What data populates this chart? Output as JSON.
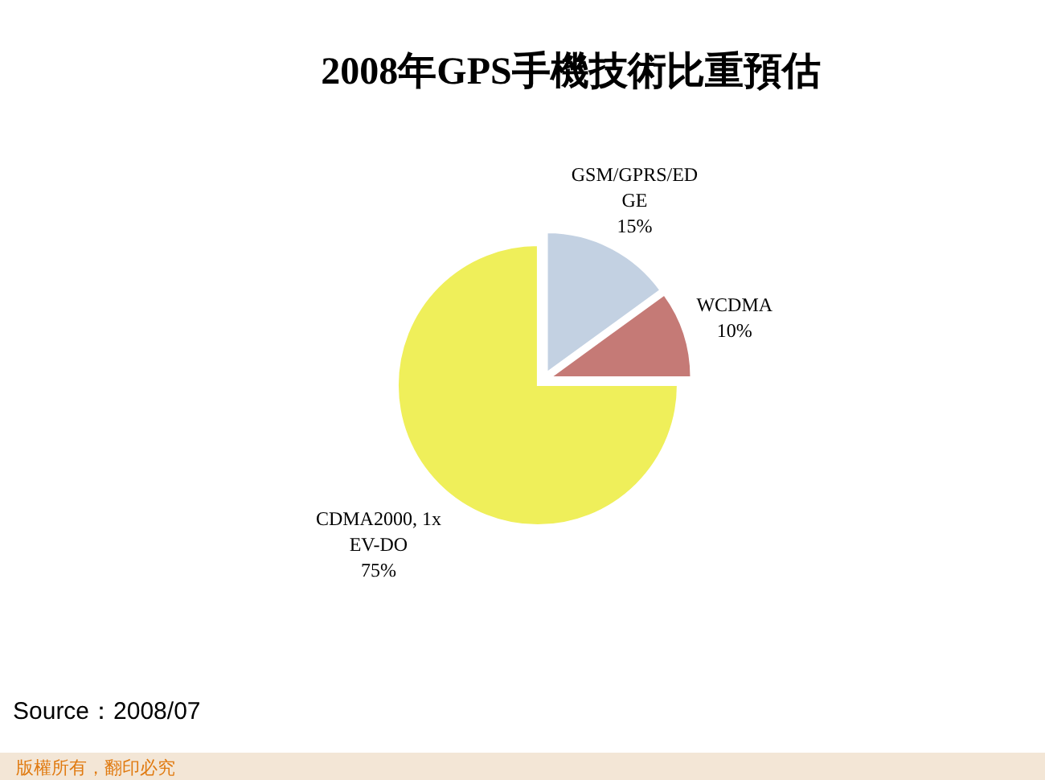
{
  "chart_data": {
    "type": "pie",
    "title": "2008年GPS手機技術比重預估",
    "categories": [
      "GSM/GPRS/EDGE",
      "WCDMA",
      "CDMA2000, 1x EV-DO"
    ],
    "values": [
      15,
      10,
      75
    ],
    "colors": [
      "#c3d1e2",
      "#c57a76",
      "#efef5a"
    ],
    "value_labels": [
      "15%",
      "10%",
      "75%"
    ],
    "annotations": [
      "Source：2008/07",
      "版權所有，翻印必究"
    ]
  }
}
